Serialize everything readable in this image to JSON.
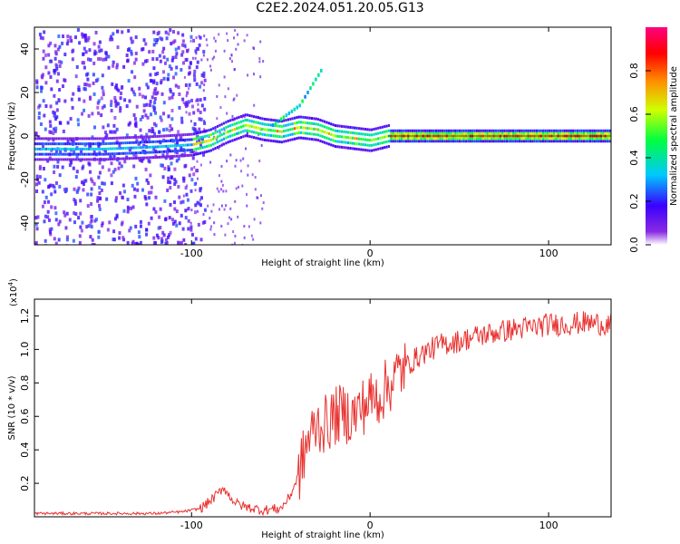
{
  "title": "C2E2.2024.051.20.05.G13",
  "chart_data": [
    {
      "type": "heatmap",
      "xlabel": "Height of straight line (km)",
      "ylabel": "Frequency (Hz)",
      "xlim": [
        -188,
        135
      ],
      "ylim": [
        -50,
        50
      ],
      "x_ticks": [
        -100,
        0,
        100
      ],
      "y_ticks": [
        -40,
        -20,
        0,
        20,
        40
      ],
      "colorbar": {
        "label": "Normalized spectral amplitude",
        "range": [
          0,
          1
        ],
        "ticks": [
          0,
          0.2,
          0.4,
          0.6,
          0.8
        ],
        "tick_labels": [
          "0.0",
          "0.2",
          "0.4",
          "0.6",
          "0.8"
        ],
        "colors": [
          "#ffffff",
          "#8a2be2",
          "#3a00ff",
          "#00c8ff",
          "#00ff40",
          "#d0ff00",
          "#ff9000",
          "#ff0000",
          "#ff0080"
        ]
      },
      "ridge": [
        {
          "x": -188,
          "f": -6
        },
        {
          "x": -150,
          "f": -6
        },
        {
          "x": -120,
          "f": -5
        },
        {
          "x": -100,
          "f": -4
        },
        {
          "x": -90,
          "f": -2
        },
        {
          "x": -80,
          "f": 2
        },
        {
          "x": -70,
          "f": 5
        },
        {
          "x": -60,
          "f": 3
        },
        {
          "x": -50,
          "f": 2
        },
        {
          "x": -40,
          "f": 4
        },
        {
          "x": -30,
          "f": 3
        },
        {
          "x": -20,
          "f": 0
        },
        {
          "x": 0,
          "f": -2
        },
        {
          "x": 10,
          "f": 0
        },
        {
          "x": 135,
          "f": 0
        }
      ],
      "branch": [
        {
          "x": -55,
          "f": 5
        },
        {
          "x": -40,
          "f": 14
        },
        {
          "x": -28,
          "f": 30
        }
      ],
      "color_scale": "rainbow"
    },
    {
      "type": "line",
      "xlabel": "Height of straight line (km)",
      "ylabel": "SNR (10 * v/v)",
      "y_multiplier_label": "(x10",
      "y_multiplier_exp": "4",
      "xlim": [
        -188,
        135
      ],
      "ylim": [
        0,
        1.3
      ],
      "x_ticks": [
        -100,
        0,
        100
      ],
      "y_ticks": [
        0.2,
        0.4,
        0.6,
        0.8,
        1.0,
        1.2
      ],
      "y_tick_labels": [
        "0.2",
        "0.4",
        "0.6",
        "0.8",
        "1.0",
        "1.2"
      ],
      "line_color": "#e8312f",
      "series": [
        {
          "x": [
            -188,
            -150,
            -120,
            -105,
            -95,
            -90,
            -85,
            -82,
            -80,
            -75,
            -70,
            -60,
            -50,
            -45,
            -40,
            -35,
            -30,
            -25,
            -20,
            -15,
            -10,
            -5,
            0,
            5,
            10,
            15,
            20,
            30,
            40,
            50,
            60,
            70,
            80,
            90,
            100,
            110,
            120,
            135
          ],
          "values": [
            0.02,
            0.02,
            0.02,
            0.03,
            0.05,
            0.09,
            0.14,
            0.18,
            0.14,
            0.08,
            0.06,
            0.04,
            0.05,
            0.12,
            0.25,
            0.45,
            0.55,
            0.55,
            0.6,
            0.62,
            0.6,
            0.65,
            0.7,
            0.72,
            0.78,
            0.85,
            0.9,
            0.98,
            1.03,
            1.05,
            1.08,
            1.1,
            1.12,
            1.13,
            1.15,
            1.15,
            1.16,
            1.15
          ]
        }
      ]
    }
  ]
}
